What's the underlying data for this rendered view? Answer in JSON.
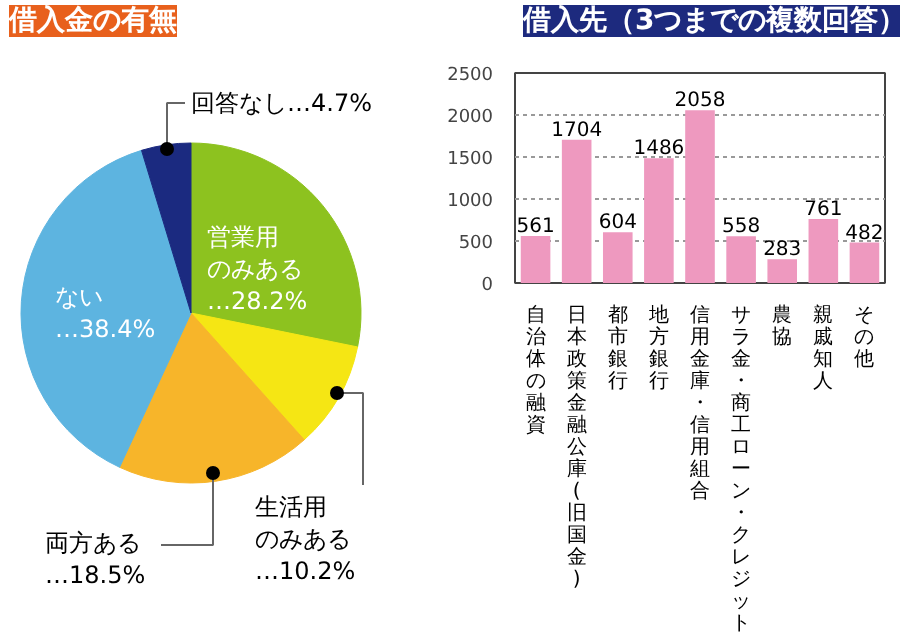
{
  "chart_data": [
    {
      "type": "pie",
      "title": "借入金の有無",
      "categories": [
        "営業用のみある",
        "生活用のみある",
        "両方ある",
        "ない",
        "回答なし"
      ],
      "values": [
        28.2,
        10.2,
        18.5,
        38.4,
        4.7
      ],
      "colors": [
        "#8dc21f",
        "#f5e614",
        "#f7b52a",
        "#5db4e0",
        "#1b2a80"
      ],
      "value_labels": [
        "…28.2%",
        "…10.2%",
        "…18.5%",
        "…38.4%",
        "…4.7%"
      ]
    },
    {
      "type": "bar",
      "title": "借入先（3つまでの複数回答）",
      "categories": [
        "自治体の融資",
        "日本政策金融公庫(旧国金)",
        "都市銀行",
        "地方銀行",
        "信用金庫・信用組合",
        "サラ金・商工ローン・クレジット",
        "農協",
        "親戚知人",
        "その他"
      ],
      "values": [
        561,
        1704,
        604,
        1486,
        2058,
        558,
        283,
        761,
        482
      ],
      "color": "#ee99bf",
      "ylim": [
        0,
        2500
      ],
      "yticks": [
        0,
        500,
        1000,
        1500,
        2000,
        2500
      ],
      "grid": "y",
      "data_labels": true
    }
  ]
}
